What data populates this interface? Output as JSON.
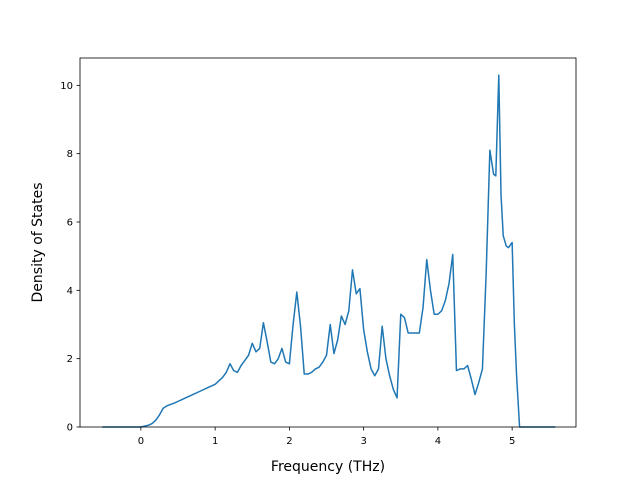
{
  "chart_data": {
    "type": "line",
    "title": "",
    "xlabel": "Frequency (THz)",
    "ylabel": "Density of States",
    "xlim": [
      -0.82,
      5.86
    ],
    "ylim": [
      0,
      10.8
    ],
    "xticks": [
      0,
      1,
      2,
      3,
      4,
      5
    ],
    "yticks": [
      0,
      2,
      4,
      6,
      8,
      10
    ],
    "grid": false,
    "line_color": "#1f77b4",
    "series": [
      {
        "name": "",
        "x": [
          -0.52,
          -0.3,
          0.0,
          0.1,
          0.15,
          0.2,
          0.25,
          0.3,
          0.35,
          0.4,
          0.45,
          0.5,
          0.55,
          0.6,
          0.7,
          0.8,
          0.9,
          1.0,
          1.1,
          1.15,
          1.2,
          1.25,
          1.3,
          1.35,
          1.4,
          1.45,
          1.5,
          1.55,
          1.6,
          1.65,
          1.7,
          1.75,
          1.8,
          1.85,
          1.9,
          1.95,
          2.0,
          2.05,
          2.1,
          2.15,
          2.2,
          2.25,
          2.3,
          2.35,
          2.4,
          2.45,
          2.5,
          2.55,
          2.6,
          2.65,
          2.7,
          2.75,
          2.8,
          2.85,
          2.9,
          2.95,
          3.0,
          3.05,
          3.1,
          3.15,
          3.2,
          3.25,
          3.3,
          3.35,
          3.4,
          3.45,
          3.5,
          3.55,
          3.6,
          3.65,
          3.7,
          3.75,
          3.8,
          3.85,
          3.9,
          3.95,
          4.0,
          4.05,
          4.1,
          4.15,
          4.2,
          4.25,
          4.3,
          4.35,
          4.4,
          4.45,
          4.5,
          4.55,
          4.6,
          4.65,
          4.7,
          4.75,
          4.78,
          4.82,
          4.85,
          4.88,
          4.92,
          4.95,
          5.0,
          5.03,
          5.06,
          5.1,
          5.3,
          5.58
        ],
        "y": [
          0,
          0,
          0,
          0.05,
          0.1,
          0.2,
          0.35,
          0.55,
          0.62,
          0.66,
          0.7,
          0.75,
          0.8,
          0.85,
          0.95,
          1.05,
          1.15,
          1.25,
          1.45,
          1.6,
          1.85,
          1.65,
          1.6,
          1.8,
          1.95,
          2.1,
          2.45,
          2.2,
          2.3,
          3.05,
          2.5,
          1.9,
          1.85,
          2.0,
          2.3,
          1.9,
          1.85,
          3.0,
          3.95,
          2.95,
          1.55,
          1.55,
          1.6,
          1.7,
          1.75,
          1.9,
          2.1,
          3.0,
          2.15,
          2.55,
          3.25,
          3.0,
          3.4,
          4.6,
          3.9,
          4.05,
          2.85,
          2.2,
          1.7,
          1.5,
          1.7,
          2.95,
          2.0,
          1.5,
          1.1,
          0.85,
          3.3,
          3.2,
          2.75,
          2.75,
          2.75,
          2.75,
          3.5,
          4.9,
          4.0,
          3.3,
          3.3,
          3.4,
          3.7,
          4.2,
          5.05,
          1.65,
          1.7,
          1.7,
          1.8,
          1.4,
          0.95,
          1.3,
          1.7,
          4.5,
          8.1,
          7.4,
          7.35,
          10.3,
          6.8,
          5.6,
          5.3,
          5.25,
          5.4,
          3.0,
          1.5,
          0,
          0,
          0
        ]
      }
    ]
  }
}
